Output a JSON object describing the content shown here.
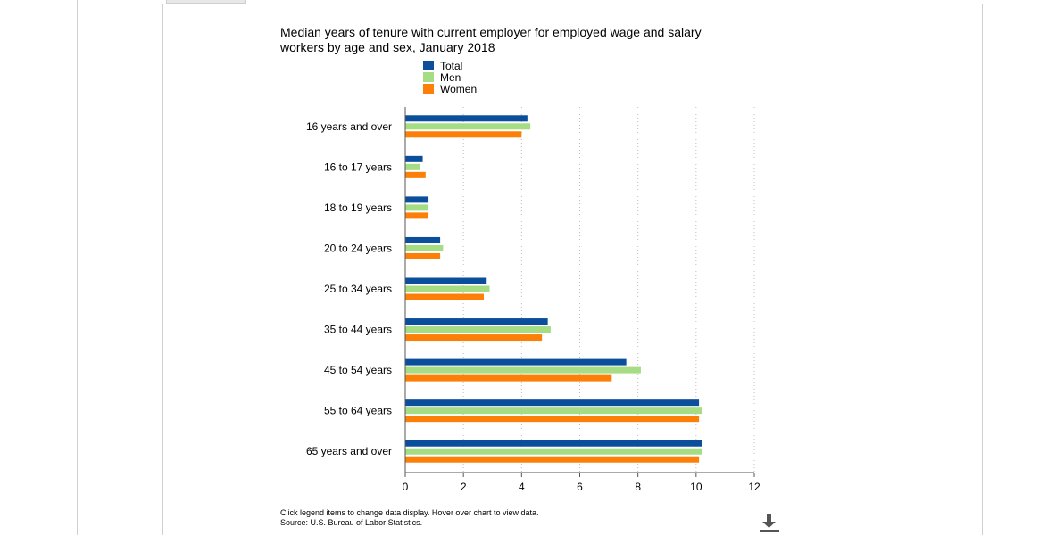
{
  "colors": {
    "total": "#0b4f9c",
    "men": "#a6dd84",
    "women": "#fc7f08"
  },
  "chart_data": {
    "type": "bar",
    "orientation": "horizontal",
    "title": "Median years of tenure with current employer for employed wage and salary workers by age and sex, January 2018",
    "categories": [
      "16 years and over",
      "16 to 17 years",
      "18 to 19 years",
      "20 to 24 years",
      "25 to 34 years",
      "35 to 44 years",
      "45 to 54 years",
      "55 to 64 years",
      "65 years and over"
    ],
    "series": [
      {
        "name": "Total",
        "color": "#0b4f9c",
        "values": [
          4.2,
          0.6,
          0.8,
          1.2,
          2.8,
          4.9,
          7.6,
          10.1,
          10.2
        ]
      },
      {
        "name": "Men",
        "color": "#a6dd84",
        "values": [
          4.3,
          0.5,
          0.8,
          1.3,
          2.9,
          5.0,
          8.1,
          10.2,
          10.2
        ]
      },
      {
        "name": "Women",
        "color": "#fc7f08",
        "values": [
          4.0,
          0.7,
          0.8,
          1.2,
          2.7,
          4.7,
          7.1,
          10.1,
          10.1
        ]
      }
    ],
    "xlim": [
      0,
      12
    ],
    "xticks": [
      0,
      2,
      4,
      6,
      8,
      10,
      12
    ],
    "grid": "vertical dotted",
    "legend_position": "top"
  },
  "footer": {
    "note_line1": "Click legend items to change data display. Hover over chart to view data.",
    "note_line2": "Source: U.S. Bureau of Labor Statistics."
  },
  "icons": {
    "download": "download-icon"
  }
}
